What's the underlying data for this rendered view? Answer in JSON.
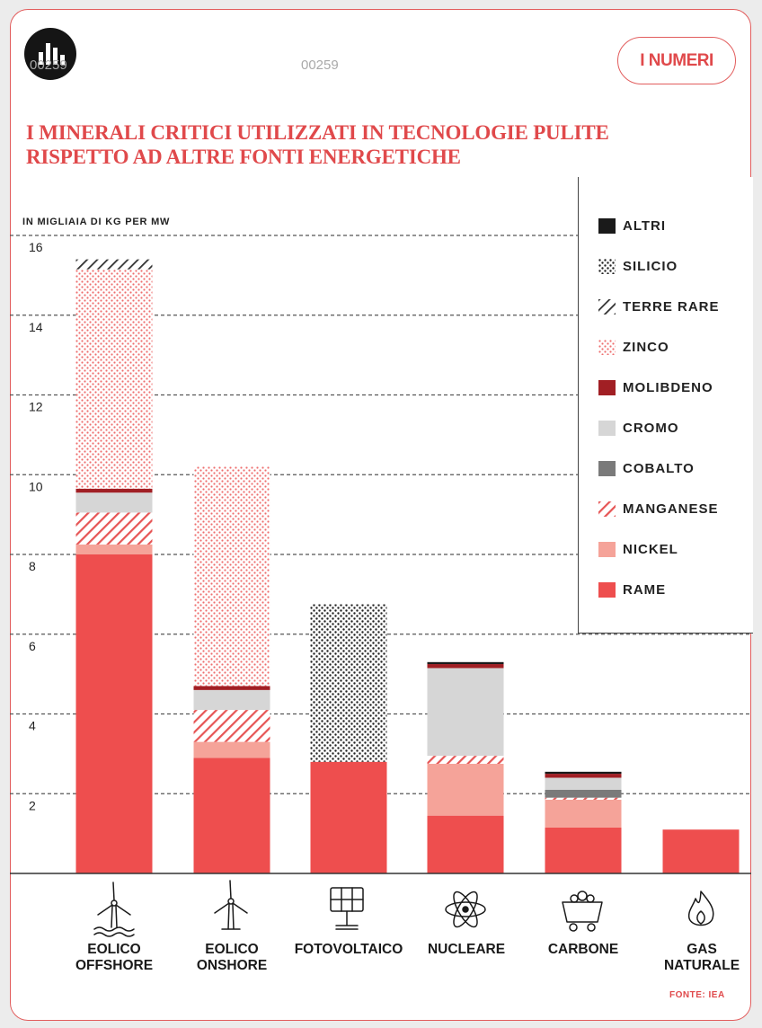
{
  "header": {
    "badge_label": "I NUMERI",
    "watermark_1": "00259",
    "watermark_2": "00259"
  },
  "title": "I MINERALI CRITICI UTILIZZATI IN TECNOLOGIE PULITE RISPETTO AD ALTRE FONTI ENERGETICHE",
  "source": "FONTE: IEA",
  "icons": [
    "wind-turbine-offshore-icon",
    "wind-turbine-onshore-icon",
    "solar-panel-icon",
    "atom-icon",
    "coal-cart-icon",
    "flame-icon"
  ],
  "colors": {
    "rame": "#ee4e4e",
    "nickel": "#f5a399",
    "manganese": "#e65555",
    "cobalto": "#7a7a7a",
    "cromo": "#d6d6d6",
    "molibdeno": "#a11f24",
    "zinco": "#ee6e6e",
    "terre_rare": "#333333",
    "silicio": "#222222",
    "altri": "#1a1a1a"
  },
  "chart_data": {
    "type": "bar",
    "stacked": true,
    "ylabel": "IN MIGLIAIA DI KG PER MW",
    "ylim": [
      0,
      16
    ],
    "yticks": [
      "2",
      "4",
      "6",
      "8",
      "10",
      "12",
      "14",
      "16"
    ],
    "grid": true,
    "legend_position": "top-right",
    "categories": [
      "EOLICO OFFSHORE",
      "EOLICO ONSHORE",
      "FOTOVOLTAICO",
      "NUCLEARE",
      "CARBONE",
      "GAS NATURALE"
    ],
    "series": [
      {
        "name": "RAME",
        "values": [
          8.0,
          2.9,
          2.8,
          1.45,
          1.15,
          1.1
        ]
      },
      {
        "name": "NICKEL",
        "values": [
          0.25,
          0.4,
          0,
          1.3,
          0.7,
          0
        ]
      },
      {
        "name": "MANGANESE",
        "values": [
          0.8,
          0.8,
          0,
          0.2,
          0.05,
          0
        ]
      },
      {
        "name": "COBALTO",
        "values": [
          0,
          0,
          0,
          0,
          0.2,
          0
        ]
      },
      {
        "name": "CROMO",
        "values": [
          0.5,
          0.5,
          0,
          2.2,
          0.3,
          0
        ]
      },
      {
        "name": "MOLIBDENO",
        "values": [
          0.1,
          0.1,
          0,
          0.1,
          0.1,
          0
        ]
      },
      {
        "name": "ZINCO",
        "values": [
          5.5,
          5.5,
          0,
          0,
          0,
          0
        ]
      },
      {
        "name": "TERRE RARE",
        "values": [
          0.25,
          0,
          0,
          0,
          0,
          0
        ]
      },
      {
        "name": "SILICIO",
        "values": [
          0,
          0,
          3.95,
          0,
          0,
          0
        ]
      },
      {
        "name": "ALTRI",
        "values": [
          0,
          0,
          0,
          0.05,
          0.05,
          0
        ]
      }
    ],
    "legend": [
      "ALTRI",
      "SILICIO",
      "TERRE RARE",
      "ZINCO",
      "MOLIBDENO",
      "CROMO",
      "COBALTO",
      "MANGANESE",
      "NICKEL",
      "RAME"
    ]
  }
}
